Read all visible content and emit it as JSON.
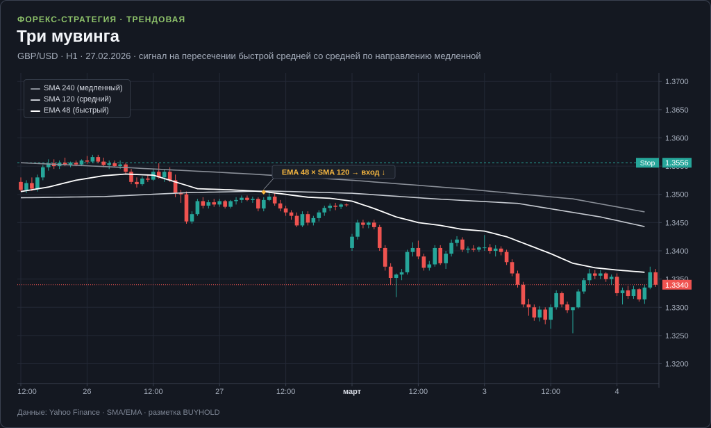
{
  "header": {
    "eyebrow": "ФОРЕКС-СТРАТЕГИЯ · ТРЕНДОВАЯ",
    "title": "Три мувинга",
    "subtitle": "GBP/USD · H1 · 27.02.2026 · сигнал на пересечении быстрой средней со средней по направлению медленной"
  },
  "footer": "Данные: Yahoo Finance · SMA/EMA · разметка BUYHOLD",
  "colors": {
    "up": "#26a69a",
    "down": "#ef5350",
    "sma240": "#8a8f98",
    "sma120": "#c7cbd2",
    "ema48": "#ffffff",
    "stop": "#26a69a",
    "current": "#ef5350",
    "signal": "#f5b640"
  },
  "chart_data": {
    "type": "candlestick",
    "y_ticks": [
      "1.3700",
      "1.3650",
      "1.3600",
      "1.3550",
      "1.3500",
      "1.3450",
      "1.3400",
      "1.3350",
      "1.3300",
      "1.3250",
      "1.3200"
    ],
    "ylim": [
      1.3165,
      1.3715
    ],
    "x_ticks": [
      {
        "label": "12:00",
        "index": 0
      },
      {
        "label": "26",
        "index": 12
      },
      {
        "label": "12:00",
        "index": 24
      },
      {
        "label": "27",
        "index": 36
      },
      {
        "label": "12:00",
        "index": 48
      },
      {
        "label": "март",
        "index": 60
      },
      {
        "label": "12:00",
        "index": 72
      },
      {
        "label": "3",
        "index": 84
      },
      {
        "label": "12:00",
        "index": 96
      },
      {
        "label": "4",
        "index": 108
      }
    ],
    "candle_count": 114,
    "legend": [
      {
        "name": "SMA 240 (медленный)",
        "color": "#8a8f98"
      },
      {
        "name": "SMA 120 (средний)",
        "color": "#c7cbd2"
      },
      {
        "name": "EMA 48 (быстрый)",
        "color": "#ffffff"
      }
    ],
    "stop": {
      "label": "Stop",
      "value_label": "1.3556",
      "value": 1.3556
    },
    "current": {
      "value_label": "1.3340",
      "value": 1.334
    },
    "signal": {
      "text": "EMA 48 × SMA 120 → вход ↓",
      "index": 44,
      "value": 1.3504
    },
    "candles": [
      {
        "o": 1.3522,
        "h": 1.353,
        "l": 1.3505,
        "c": 1.3508
      },
      {
        "o": 1.3508,
        "h": 1.3525,
        "l": 1.3502,
        "c": 1.352
      },
      {
        "o": 1.352,
        "h": 1.353,
        "l": 1.3506,
        "c": 1.351
      },
      {
        "o": 1.351,
        "h": 1.3535,
        "l": 1.3505,
        "c": 1.353
      },
      {
        "o": 1.353,
        "h": 1.3552,
        "l": 1.3525,
        "c": 1.3548
      },
      {
        "o": 1.3548,
        "h": 1.3562,
        "l": 1.3542,
        "c": 1.3555
      },
      {
        "o": 1.3555,
        "h": 1.3562,
        "l": 1.3545,
        "c": 1.355
      },
      {
        "o": 1.355,
        "h": 1.356,
        "l": 1.3545,
        "c": 1.3556
      },
      {
        "o": 1.3556,
        "h": 1.3565,
        "l": 1.355,
        "c": 1.3552
      },
      {
        "o": 1.3552,
        "h": 1.3558,
        "l": 1.3548,
        "c": 1.3556
      },
      {
        "o": 1.3556,
        "h": 1.356,
        "l": 1.355,
        "c": 1.3553
      },
      {
        "o": 1.3553,
        "h": 1.3562,
        "l": 1.355,
        "c": 1.356
      },
      {
        "o": 1.356,
        "h": 1.3568,
        "l": 1.3554,
        "c": 1.3558
      },
      {
        "o": 1.3558,
        "h": 1.357,
        "l": 1.3555,
        "c": 1.3566
      },
      {
        "o": 1.3566,
        "h": 1.357,
        "l": 1.3555,
        "c": 1.3558
      },
      {
        "o": 1.3558,
        "h": 1.3565,
        "l": 1.3548,
        "c": 1.3552
      },
      {
        "o": 1.3552,
        "h": 1.356,
        "l": 1.3545,
        "c": 1.3555
      },
      {
        "o": 1.3555,
        "h": 1.356,
        "l": 1.3548,
        "c": 1.355
      },
      {
        "o": 1.355,
        "h": 1.356,
        "l": 1.3545,
        "c": 1.3553
      },
      {
        "o": 1.3553,
        "h": 1.3556,
        "l": 1.3535,
        "c": 1.354
      },
      {
        "o": 1.354,
        "h": 1.3545,
        "l": 1.3518,
        "c": 1.3522
      },
      {
        "o": 1.3522,
        "h": 1.353,
        "l": 1.3512,
        "c": 1.3518
      },
      {
        "o": 1.3518,
        "h": 1.3532,
        "l": 1.3515,
        "c": 1.3528
      },
      {
        "o": 1.3528,
        "h": 1.3535,
        "l": 1.3522,
        "c": 1.3526
      },
      {
        "o": 1.3526,
        "h": 1.3545,
        "l": 1.3524,
        "c": 1.354
      },
      {
        "o": 1.354,
        "h": 1.3555,
        "l": 1.3528,
        "c": 1.353
      },
      {
        "o": 1.353,
        "h": 1.3545,
        "l": 1.3522,
        "c": 1.354
      },
      {
        "o": 1.354,
        "h": 1.3548,
        "l": 1.3522,
        "c": 1.3525
      },
      {
        "o": 1.3525,
        "h": 1.3535,
        "l": 1.3495,
        "c": 1.3502
      },
      {
        "o": 1.3502,
        "h": 1.3508,
        "l": 1.3485,
        "c": 1.35
      },
      {
        "o": 1.35,
        "h": 1.3505,
        "l": 1.3448,
        "c": 1.3452
      },
      {
        "o": 1.3452,
        "h": 1.347,
        "l": 1.3448,
        "c": 1.3465
      },
      {
        "o": 1.3465,
        "h": 1.3492,
        "l": 1.3462,
        "c": 1.3488
      },
      {
        "o": 1.3488,
        "h": 1.3495,
        "l": 1.3475,
        "c": 1.348
      },
      {
        "o": 1.348,
        "h": 1.349,
        "l": 1.3475,
        "c": 1.3486
      },
      {
        "o": 1.3486,
        "h": 1.3492,
        "l": 1.3478,
        "c": 1.3482
      },
      {
        "o": 1.3482,
        "h": 1.3492,
        "l": 1.3478,
        "c": 1.3488
      },
      {
        "o": 1.3488,
        "h": 1.349,
        "l": 1.3475,
        "c": 1.3478
      },
      {
        "o": 1.3478,
        "h": 1.349,
        "l": 1.3475,
        "c": 1.3488
      },
      {
        "o": 1.3488,
        "h": 1.3495,
        "l": 1.3482,
        "c": 1.349
      },
      {
        "o": 1.349,
        "h": 1.3498,
        "l": 1.3485,
        "c": 1.3494
      },
      {
        "o": 1.3494,
        "h": 1.3498,
        "l": 1.3488,
        "c": 1.349
      },
      {
        "o": 1.349,
        "h": 1.3496,
        "l": 1.3485,
        "c": 1.3492
      },
      {
        "o": 1.3492,
        "h": 1.3495,
        "l": 1.347,
        "c": 1.3475
      },
      {
        "o": 1.3475,
        "h": 1.3495,
        "l": 1.347,
        "c": 1.349
      },
      {
        "o": 1.349,
        "h": 1.3504,
        "l": 1.3488,
        "c": 1.3496
      },
      {
        "o": 1.3496,
        "h": 1.3502,
        "l": 1.348,
        "c": 1.3484
      },
      {
        "o": 1.3484,
        "h": 1.349,
        "l": 1.347,
        "c": 1.3475
      },
      {
        "o": 1.3475,
        "h": 1.348,
        "l": 1.3462,
        "c": 1.3468
      },
      {
        "o": 1.3468,
        "h": 1.3472,
        "l": 1.3455,
        "c": 1.3462
      },
      {
        "o": 1.3462,
        "h": 1.3468,
        "l": 1.3442,
        "c": 1.3445
      },
      {
        "o": 1.3445,
        "h": 1.347,
        "l": 1.3442,
        "c": 1.3465
      },
      {
        "o": 1.3465,
        "h": 1.347,
        "l": 1.3445,
        "c": 1.345
      },
      {
        "o": 1.345,
        "h": 1.3462,
        "l": 1.3445,
        "c": 1.3458
      },
      {
        "o": 1.3458,
        "h": 1.3472,
        "l": 1.3452,
        "c": 1.3468
      },
      {
        "o": 1.3468,
        "h": 1.348,
        "l": 1.3462,
        "c": 1.3476
      },
      {
        "o": 1.3476,
        "h": 1.3484,
        "l": 1.347,
        "c": 1.348
      },
      {
        "o": 1.348,
        "h": 1.3485,
        "l": 1.3472,
        "c": 1.3478
      },
      {
        "o": 1.3478,
        "h": 1.3484,
        "l": 1.3474,
        "c": 1.3482
      },
      {
        "o": 1.3482,
        "h": 1.3484,
        "l": 1.3478,
        "c": 1.3481
      },
      {
        "o": 1.3405,
        "h": 1.343,
        "l": 1.34,
        "c": 1.3425
      },
      {
        "o": 1.3425,
        "h": 1.3455,
        "l": 1.342,
        "c": 1.345
      },
      {
        "o": 1.345,
        "h": 1.3455,
        "l": 1.344,
        "c": 1.3446
      },
      {
        "o": 1.3446,
        "h": 1.3452,
        "l": 1.344,
        "c": 1.345
      },
      {
        "o": 1.345,
        "h": 1.3455,
        "l": 1.3438,
        "c": 1.3442
      },
      {
        "o": 1.3442,
        "h": 1.3446,
        "l": 1.34,
        "c": 1.3405
      },
      {
        "o": 1.3405,
        "h": 1.341,
        "l": 1.3365,
        "c": 1.3372
      },
      {
        "o": 1.3372,
        "h": 1.3378,
        "l": 1.334,
        "c": 1.3352
      },
      {
        "o": 1.3352,
        "h": 1.336,
        "l": 1.3318,
        "c": 1.3358
      },
      {
        "o": 1.3358,
        "h": 1.3368,
        "l": 1.3348,
        "c": 1.3362
      },
      {
        "o": 1.3362,
        "h": 1.3402,
        "l": 1.3358,
        "c": 1.3398
      },
      {
        "o": 1.3398,
        "h": 1.3415,
        "l": 1.339,
        "c": 1.3405
      },
      {
        "o": 1.3405,
        "h": 1.3418,
        "l": 1.3385,
        "c": 1.339
      },
      {
        "o": 1.339,
        "h": 1.3395,
        "l": 1.3365,
        "c": 1.337
      },
      {
        "o": 1.337,
        "h": 1.3382,
        "l": 1.3365,
        "c": 1.3376
      },
      {
        "o": 1.3376,
        "h": 1.341,
        "l": 1.3372,
        "c": 1.3405
      },
      {
        "o": 1.3405,
        "h": 1.341,
        "l": 1.3375,
        "c": 1.3378
      },
      {
        "o": 1.3378,
        "h": 1.34,
        "l": 1.3368,
        "c": 1.3395
      },
      {
        "o": 1.3395,
        "h": 1.342,
        "l": 1.339,
        "c": 1.3414
      },
      {
        "o": 1.3414,
        "h": 1.3426,
        "l": 1.3408,
        "c": 1.342
      },
      {
        "o": 1.342,
        "h": 1.3424,
        "l": 1.3398,
        "c": 1.3402
      },
      {
        "o": 1.3402,
        "h": 1.3408,
        "l": 1.3396,
        "c": 1.3404
      },
      {
        "o": 1.3404,
        "h": 1.341,
        "l": 1.3398,
        "c": 1.3402
      },
      {
        "o": 1.3402,
        "h": 1.3408,
        "l": 1.3398,
        "c": 1.3406
      },
      {
        "o": 1.3406,
        "h": 1.3428,
        "l": 1.34,
        "c": 1.3406
      },
      {
        "o": 1.3406,
        "h": 1.3412,
        "l": 1.3395,
        "c": 1.34
      },
      {
        "o": 1.34,
        "h": 1.341,
        "l": 1.339,
        "c": 1.3404
      },
      {
        "o": 1.3404,
        "h": 1.3408,
        "l": 1.3392,
        "c": 1.3398
      },
      {
        "o": 1.3398,
        "h": 1.3402,
        "l": 1.3375,
        "c": 1.338
      },
      {
        "o": 1.338,
        "h": 1.3385,
        "l": 1.3355,
        "c": 1.336
      },
      {
        "o": 1.336,
        "h": 1.3365,
        "l": 1.3335,
        "c": 1.334
      },
      {
        "o": 1.334,
        "h": 1.3345,
        "l": 1.33,
        "c": 1.3305
      },
      {
        "o": 1.3305,
        "h": 1.3315,
        "l": 1.3285,
        "c": 1.33
      },
      {
        "o": 1.33,
        "h": 1.3305,
        "l": 1.3276,
        "c": 1.3282
      },
      {
        "o": 1.3282,
        "h": 1.3302,
        "l": 1.3275,
        "c": 1.3296
      },
      {
        "o": 1.3296,
        "h": 1.33,
        "l": 1.327,
        "c": 1.3278
      },
      {
        "o": 1.3278,
        "h": 1.3305,
        "l": 1.3262,
        "c": 1.33
      },
      {
        "o": 1.33,
        "h": 1.333,
        "l": 1.3296,
        "c": 1.3325
      },
      {
        "o": 1.3325,
        "h": 1.3328,
        "l": 1.33,
        "c": 1.3305
      },
      {
        "o": 1.3305,
        "h": 1.331,
        "l": 1.329,
        "c": 1.3295
      },
      {
        "o": 1.3295,
        "h": 1.33,
        "l": 1.3254,
        "c": 1.33
      },
      {
        "o": 1.33,
        "h": 1.3332,
        "l": 1.3298,
        "c": 1.3328
      },
      {
        "o": 1.3328,
        "h": 1.3352,
        "l": 1.3324,
        "c": 1.3348
      },
      {
        "o": 1.3348,
        "h": 1.3368,
        "l": 1.334,
        "c": 1.336
      },
      {
        "o": 1.336,
        "h": 1.3366,
        "l": 1.335,
        "c": 1.3356
      },
      {
        "o": 1.3356,
        "h": 1.3366,
        "l": 1.335,
        "c": 1.336
      },
      {
        "o": 1.336,
        "h": 1.3362,
        "l": 1.3345,
        "c": 1.335
      },
      {
        "o": 1.335,
        "h": 1.3358,
        "l": 1.334,
        "c": 1.3354
      },
      {
        "o": 1.3354,
        "h": 1.336,
        "l": 1.332,
        "c": 1.3325
      },
      {
        "o": 1.3325,
        "h": 1.3335,
        "l": 1.3305,
        "c": 1.333
      },
      {
        "o": 1.333,
        "h": 1.3338,
        "l": 1.3315,
        "c": 1.332
      },
      {
        "o": 1.332,
        "h": 1.3338,
        "l": 1.3315,
        "c": 1.3332
      },
      {
        "o": 1.3332,
        "h": 1.3334,
        "l": 1.331,
        "c": 1.3314
      },
      {
        "o": 1.3314,
        "h": 1.334,
        "l": 1.3306,
        "c": 1.3335
      },
      {
        "o": 1.3335,
        "h": 1.3372,
        "l": 1.3332,
        "c": 1.3362
      },
      {
        "o": 1.3362,
        "h": 1.3368,
        "l": 1.3336,
        "c": 1.334
      }
    ],
    "sma240": [
      {
        "i": 0,
        "v": 1.3556
      },
      {
        "i": 20,
        "v": 1.3547
      },
      {
        "i": 40,
        "v": 1.3537
      },
      {
        "i": 60,
        "v": 1.3525
      },
      {
        "i": 80,
        "v": 1.351
      },
      {
        "i": 100,
        "v": 1.3492
      },
      {
        "i": 113,
        "v": 1.3469
      }
    ],
    "sma120": [
      {
        "i": 0,
        "v": 1.3494
      },
      {
        "i": 15,
        "v": 1.3496
      },
      {
        "i": 30,
        "v": 1.3503
      },
      {
        "i": 45,
        "v": 1.3506
      },
      {
        "i": 60,
        "v": 1.3502
      },
      {
        "i": 75,
        "v": 1.3492
      },
      {
        "i": 90,
        "v": 1.3484
      },
      {
        "i": 105,
        "v": 1.346
      },
      {
        "i": 113,
        "v": 1.3443
      }
    ],
    "ema48": [
      {
        "i": 0,
        "v": 1.3505
      },
      {
        "i": 5,
        "v": 1.3513
      },
      {
        "i": 10,
        "v": 1.3525
      },
      {
        "i": 15,
        "v": 1.3533
      },
      {
        "i": 19,
        "v": 1.3536
      },
      {
        "i": 24,
        "v": 1.3534
      },
      {
        "i": 28,
        "v": 1.3522
      },
      {
        "i": 32,
        "v": 1.351
      },
      {
        "i": 38,
        "v": 1.3508
      },
      {
        "i": 44,
        "v": 1.3505
      },
      {
        "i": 48,
        "v": 1.35
      },
      {
        "i": 52,
        "v": 1.3495
      },
      {
        "i": 56,
        "v": 1.3493
      },
      {
        "i": 60,
        "v": 1.3488
      },
      {
        "i": 64,
        "v": 1.3475
      },
      {
        "i": 68,
        "v": 1.346
      },
      {
        "i": 72,
        "v": 1.345
      },
      {
        "i": 76,
        "v": 1.3445
      },
      {
        "i": 80,
        "v": 1.3438
      },
      {
        "i": 84,
        "v": 1.3435
      },
      {
        "i": 88,
        "v": 1.3425
      },
      {
        "i": 92,
        "v": 1.341
      },
      {
        "i": 96,
        "v": 1.3395
      },
      {
        "i": 100,
        "v": 1.3378
      },
      {
        "i": 104,
        "v": 1.337
      },
      {
        "i": 108,
        "v": 1.3366
      },
      {
        "i": 113,
        "v": 1.3362
      }
    ]
  }
}
